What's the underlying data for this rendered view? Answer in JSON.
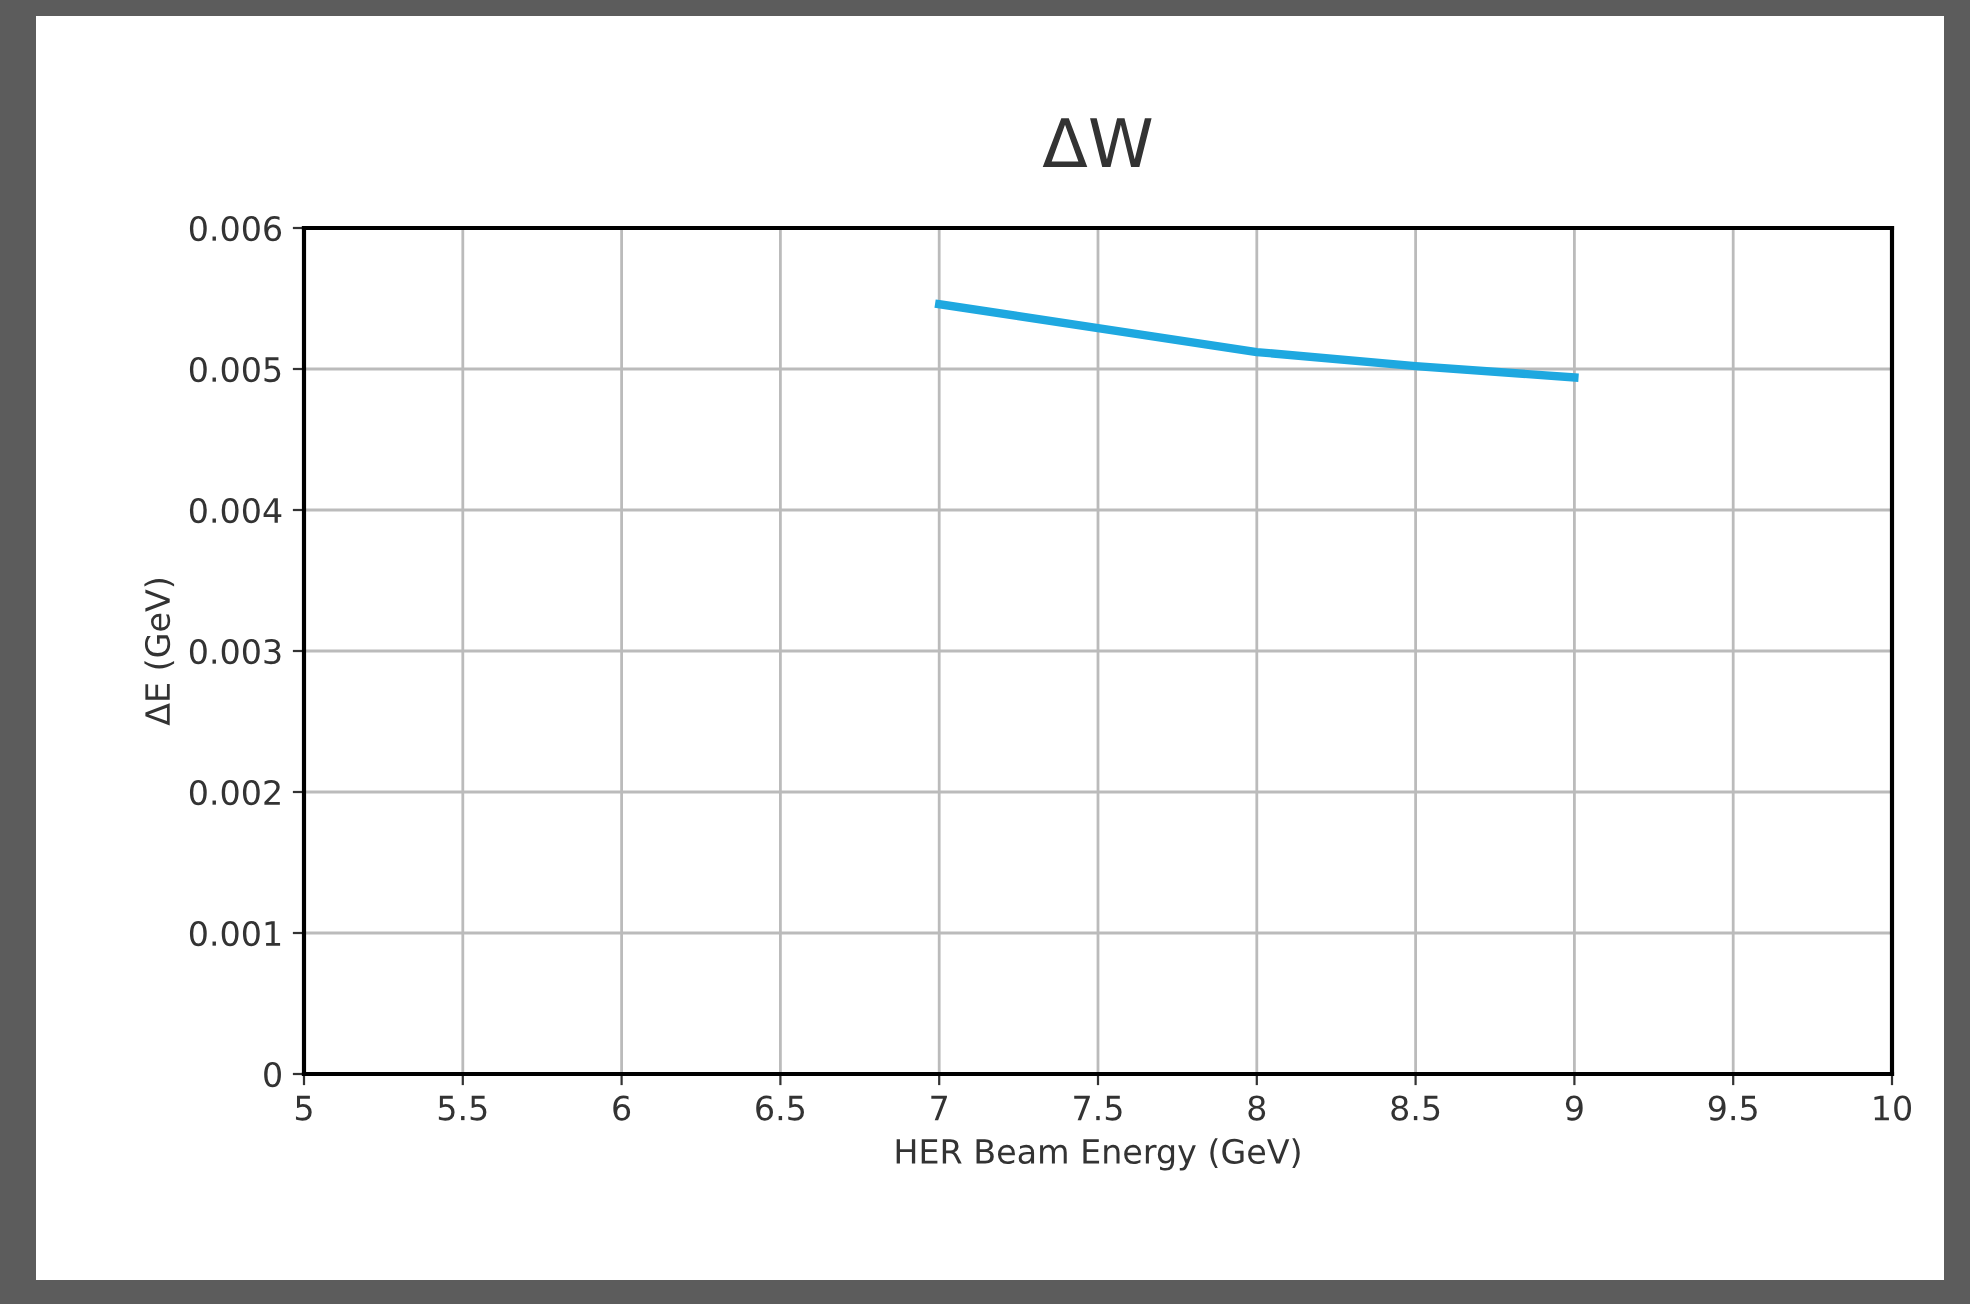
{
  "chart_data": {
    "type": "line",
    "title": "ΔW",
    "xlabel": "HER Beam Energy (GeV)",
    "ylabel": "ΔE (GeV)",
    "x": [
      7,
      7.5,
      8,
      8.5,
      9
    ],
    "series": [
      {
        "color": "#1ea8e0",
        "values": [
          0.00546,
          0.00529,
          0.00512,
          0.00502,
          0.00494
        ]
      }
    ],
    "xlim": [
      5,
      10
    ],
    "xticks": [
      5,
      5.5,
      6,
      6.5,
      7,
      7.5,
      8,
      8.5,
      9,
      9.5,
      10
    ],
    "ylim": [
      0,
      0.006
    ],
    "yticks": [
      0,
      0.001,
      0.002,
      0.003,
      0.004,
      0.005,
      0.006
    ],
    "grid": true,
    "marker": "none",
    "line_style": "solid"
  }
}
